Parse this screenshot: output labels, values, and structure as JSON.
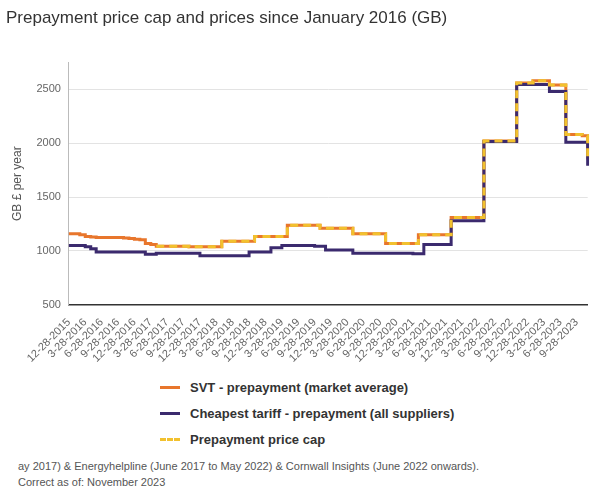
{
  "chart_data": {
    "type": "line",
    "title": "Prepayment price cap and prices since January 2016 (GB)",
    "y_label": "GB £ per year",
    "categories": [
      "12-28-2015",
      null,
      null,
      "3-28-2016",
      null,
      null,
      "6-28-2016",
      null,
      null,
      "9-28-2016",
      null,
      null,
      "12-28-2016",
      null,
      null,
      "3-28-2017",
      null,
      null,
      "6-28-2017",
      null,
      null,
      "9-28-2017",
      null,
      null,
      "12-28-2017",
      null,
      null,
      "3-28-2018",
      null,
      null,
      "6-28-2018",
      null,
      null,
      "9-28-2018",
      null,
      null,
      "12-28-2018",
      null,
      null,
      "3-28-2019",
      null,
      null,
      "6-28-2019",
      null,
      null,
      "9-28-2019",
      null,
      null,
      "12-28-2019",
      null,
      null,
      "3-28-2020",
      null,
      null,
      "6-28-2020",
      null,
      null,
      "9-28-2020",
      null,
      null,
      "12-28-2020",
      null,
      null,
      "3-28-2021",
      null,
      null,
      "6-28-2021",
      null,
      null,
      "9-28-2021",
      null,
      null,
      "12-28-2021",
      null,
      null,
      "3-28-2022",
      null,
      null,
      "6-28-2022",
      null,
      null,
      "9-28-2022",
      null,
      null,
      "12-28-2022",
      null,
      null,
      "3-28-2023",
      null,
      null,
      "6-28-2023",
      null,
      null,
      "9-28-2023",
      null,
      null
    ],
    "series": [
      {
        "name": "SVT - prepayment (market average)",
        "color": "#e8762c",
        "line_style": "solid",
        "values": [
          1160,
          1160,
          1150,
          1135,
          1130,
          1125,
          1125,
          1125,
          1125,
          1125,
          1120,
          1115,
          1110,
          1105,
          1070,
          1060,
          1045,
          1045,
          1045,
          1045,
          1045,
          1045,
          1040,
          1040,
          1040,
          1040,
          1040,
          1040,
          1090,
          1090,
          1090,
          1090,
          1090,
          1090,
          1135,
          1135,
          1135,
          1135,
          1135,
          1135,
          1240,
          1240,
          1240,
          1240,
          1240,
          1240,
          1210,
          1210,
          1210,
          1210,
          1210,
          1210,
          1160,
          1160,
          1160,
          1160,
          1160,
          1160,
          1070,
          1070,
          1070,
          1070,
          1070,
          1070,
          1150,
          1150,
          1150,
          1150,
          1150,
          1150,
          1310,
          1310,
          1310,
          1310,
          1310,
          1310,
          2020,
          2020,
          2020,
          2020,
          2020,
          2020,
          2560,
          2560,
          2560,
          2580,
          2580,
          2580,
          2540,
          2540,
          2540,
          2080,
          2080,
          2080,
          2070,
          1850
        ]
      },
      {
        "name": "Cheapest tariff - prepayment (all suppliers)",
        "color": "#3b2a6e",
        "line_style": "solid",
        "values": [
          1050,
          1050,
          1050,
          1040,
          1020,
          990,
          990,
          990,
          990,
          990,
          990,
          990,
          990,
          990,
          970,
          970,
          980,
          980,
          980,
          980,
          980,
          980,
          980,
          980,
          955,
          955,
          955,
          955,
          955,
          955,
          955,
          955,
          955,
          990,
          990,
          990,
          990,
          1030,
          1030,
          1050,
          1050,
          1050,
          1050,
          1050,
          1050,
          1045,
          1045,
          1010,
          1010,
          1010,
          1010,
          1010,
          980,
          980,
          980,
          980,
          980,
          980,
          980,
          980,
          980,
          980,
          980,
          975,
          975,
          1060,
          1060,
          1060,
          1060,
          1060,
          1280,
          1280,
          1280,
          1280,
          1280,
          1280,
          2015,
          2015,
          2015,
          2015,
          2015,
          2015,
          2545,
          2545,
          2545,
          2545,
          2545,
          2545,
          2480,
          2480,
          2480,
          2010,
          2010,
          2010,
          2010,
          1790
        ]
      },
      {
        "name": "Prepayment price cap",
        "color": "#f2c12e",
        "line_style": "dashed",
        "values": [
          null,
          null,
          null,
          null,
          null,
          null,
          null,
          null,
          null,
          null,
          null,
          null,
          null,
          null,
          null,
          null,
          1045,
          1045,
          1045,
          1045,
          1045,
          1045,
          1040,
          1040,
          1040,
          1040,
          1040,
          1040,
          1090,
          1090,
          1090,
          1090,
          1090,
          1090,
          1135,
          1135,
          1135,
          1135,
          1135,
          1135,
          1240,
          1240,
          1240,
          1240,
          1240,
          1240,
          1210,
          1210,
          1210,
          1210,
          1210,
          1210,
          1160,
          1160,
          1160,
          1160,
          1160,
          1160,
          1070,
          1070,
          1070,
          1070,
          1070,
          1070,
          1150,
          1150,
          1150,
          1150,
          1150,
          1150,
          1310,
          1310,
          1310,
          1310,
          1310,
          1310,
          2020,
          2020,
          2020,
          2020,
          2020,
          2020,
          2560,
          2560,
          2560,
          2580,
          2580,
          2580,
          2540,
          2540,
          2540,
          2080,
          2080,
          2080,
          2070,
          1850
        ]
      }
    ],
    "ylim": [
      500,
      2750
    ],
    "yticks": [
      500,
      1000,
      1500,
      2000,
      2500
    ],
    "grid": true,
    "legend": "bottom",
    "annotations": [
      "ay 2017) & Energyhelpline (June 2017 to May 2022) & Cornwall Insights (June 2022 onwards).",
      "Correct as of: November 2023"
    ]
  }
}
